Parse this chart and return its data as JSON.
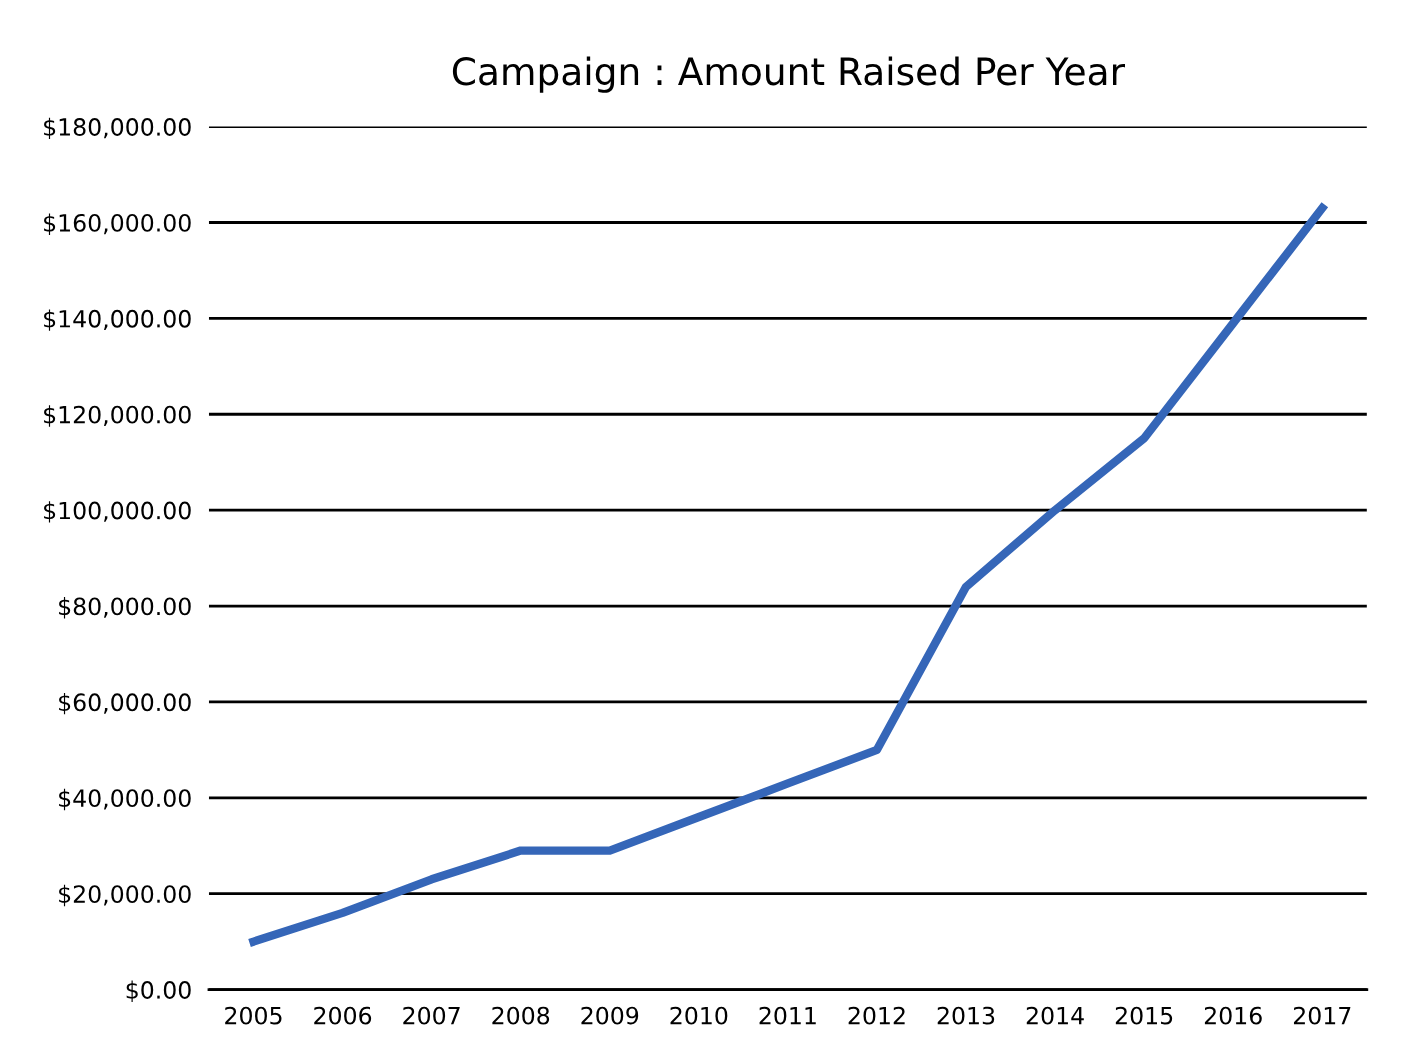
{
  "chart_data": {
    "type": "line",
    "title": "Campaign : Amount Raised Per Year",
    "categories": [
      "2005",
      "2006",
      "2007",
      "2008",
      "2009",
      "2010",
      "2011",
      "2012",
      "2013",
      "2014",
      "2015",
      "2016",
      "2017"
    ],
    "series": [
      {
        "color": "#3566b8",
        "values": [
          10000,
          16000,
          23000,
          29000,
          29000,
          36000,
          43000,
          50000,
          84000,
          100000,
          115000,
          139000,
          163000
        ]
      }
    ],
    "ylim": [
      0,
      180000
    ],
    "yticks": [
      {
        "value": 0,
        "label": "$0.00"
      },
      {
        "value": 20000,
        "label": "$20,000.00"
      },
      {
        "value": 40000,
        "label": "$40,000.00"
      },
      {
        "value": 60000,
        "label": "$60,000.00"
      },
      {
        "value": 80000,
        "label": "$80,000.00"
      },
      {
        "value": 100000,
        "label": "$100,000.00"
      },
      {
        "value": 120000,
        "label": "$120,000.00"
      },
      {
        "value": 140000,
        "label": "$140,000.00"
      },
      {
        "value": 160000,
        "label": "$160,000.00"
      },
      {
        "value": 180000,
        "label": "$180,000.00"
      }
    ],
    "grid": "y",
    "legend": false,
    "marker": "none",
    "line_style": "solid"
  }
}
